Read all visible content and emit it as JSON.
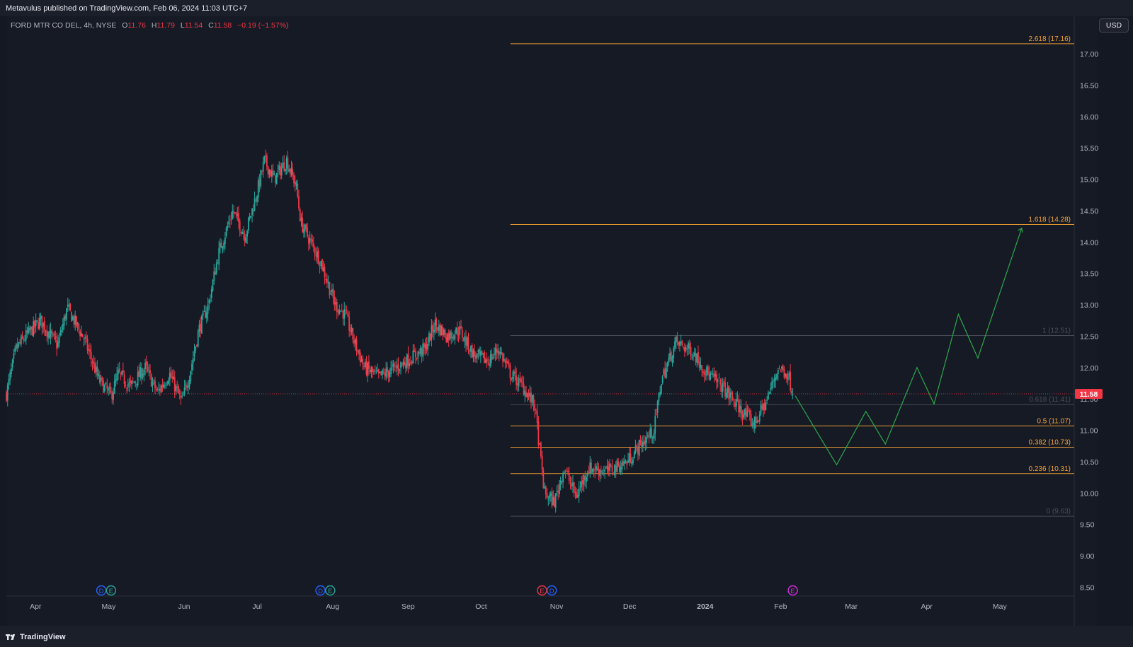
{
  "header": {
    "publisher_text": "Metavulus published on TradingView.com, Feb 06, 2024 11:03 UTC+7"
  },
  "legend": {
    "symbol_text": "FORD MTR CO DEL, 4h, NYSE",
    "open_label": "O",
    "open_value": "11.76",
    "high_label": "H",
    "high_value": "11.79",
    "low_label": "L",
    "low_value": "11.54",
    "close_label": "C",
    "close_value": "11.58",
    "change_text": "−0.19 (−1.57%)"
  },
  "currency_button": "USD",
  "branding": "TradingView",
  "colors": {
    "up": "#26a69a",
    "down": "#f23645",
    "fib_orange": "#f7a233",
    "fib_gray": "#787b86",
    "projection": "#2ba84a",
    "background": "#161a25"
  },
  "chart_data": {
    "type": "candlestick",
    "title": "FORD MTR CO DEL, 4h, NYSE",
    "ylim": [
      8.2,
      17.35
    ],
    "price_axis_labels": [
      "17.00",
      "16.50",
      "16.00",
      "15.50",
      "15.00",
      "14.50",
      "14.00",
      "13.50",
      "13.00",
      "12.50",
      "12.00",
      "11.50",
      "11.00",
      "10.50",
      "10.00",
      "9.50",
      "9.00",
      "8.50"
    ],
    "price_axis_values": [
      17.0,
      16.5,
      16.0,
      15.5,
      15.0,
      14.5,
      14.0,
      13.5,
      13.0,
      12.5,
      12.0,
      11.5,
      11.0,
      10.5,
      10.0,
      9.5,
      9.0,
      8.5
    ],
    "time_axis_labels": [
      "Apr",
      "May",
      "Jun",
      "Jul",
      "Aug",
      "Sep",
      "Oct",
      "Nov",
      "Dec",
      "2024",
      "Feb",
      "Mar",
      "Apr",
      "May"
    ],
    "time_axis_dates": [
      "2023-04-01",
      "2023-05-01",
      "2023-06-01",
      "2023-07-01",
      "2023-08-01",
      "2023-09-01",
      "2023-10-01",
      "2023-11-01",
      "2023-12-01",
      "2024-01-01",
      "2024-02-01",
      "2024-03-01",
      "2024-04-01",
      "2024-05-01"
    ],
    "last_price": 11.58,
    "last_price_label": "11.58",
    "price_path": [
      [
        "2023-03-20",
        11.58
      ],
      [
        "2023-03-24",
        12.3
      ],
      [
        "2023-03-28",
        12.5
      ],
      [
        "2023-04-03",
        12.75
      ],
      [
        "2023-04-10",
        12.35
      ],
      [
        "2023-04-14",
        12.95
      ],
      [
        "2023-04-21",
        12.45
      ],
      [
        "2023-04-27",
        11.8
      ],
      [
        "2023-05-02",
        11.55
      ],
      [
        "2023-05-05",
        11.9
      ],
      [
        "2023-05-10",
        11.7
      ],
      [
        "2023-05-16",
        12.0
      ],
      [
        "2023-05-21",
        11.6
      ],
      [
        "2023-05-26",
        11.9
      ],
      [
        "2023-05-31",
        11.45
      ],
      [
        "2023-06-03",
        11.85
      ],
      [
        "2023-06-07",
        12.6
      ],
      [
        "2023-06-11",
        13.0
      ],
      [
        "2023-06-15",
        13.8
      ],
      [
        "2023-06-21",
        14.5
      ],
      [
        "2023-06-26",
        14.1
      ],
      [
        "2023-07-01",
        14.8
      ],
      [
        "2023-07-04",
        15.3
      ],
      [
        "2023-07-08",
        15.0
      ],
      [
        "2023-07-13",
        15.3
      ],
      [
        "2023-07-17",
        14.9
      ],
      [
        "2023-07-19",
        14.3
      ],
      [
        "2023-07-23",
        14.0
      ],
      [
        "2023-07-27",
        13.7
      ],
      [
        "2023-08-02",
        13.0
      ],
      [
        "2023-08-06",
        12.85
      ],
      [
        "2023-08-10",
        12.4
      ],
      [
        "2023-08-14",
        12.0
      ],
      [
        "2023-08-20",
        11.85
      ],
      [
        "2023-08-27",
        12.0
      ],
      [
        "2023-09-02",
        12.15
      ],
      [
        "2023-09-08",
        12.3
      ],
      [
        "2023-09-12",
        12.7
      ],
      [
        "2023-09-17",
        12.5
      ],
      [
        "2023-09-22",
        12.6
      ],
      [
        "2023-09-28",
        12.2
      ],
      [
        "2023-10-04",
        12.1
      ],
      [
        "2023-10-08",
        12.3
      ],
      [
        "2023-10-13",
        11.9
      ],
      [
        "2023-10-18",
        11.7
      ],
      [
        "2023-10-23",
        11.4
      ],
      [
        "2023-10-27",
        10.0
      ],
      [
        "2023-10-31",
        9.85
      ],
      [
        "2023-11-04",
        10.4
      ],
      [
        "2023-11-09",
        9.95
      ],
      [
        "2023-11-14",
        10.4
      ],
      [
        "2023-11-22",
        10.35
      ],
      [
        "2023-11-30",
        10.5
      ],
      [
        "2023-12-05",
        10.75
      ],
      [
        "2023-12-11",
        11.0
      ],
      [
        "2023-12-14",
        11.8
      ],
      [
        "2023-12-20",
        12.4
      ],
      [
        "2023-12-27",
        12.25
      ],
      [
        "2024-01-02",
        11.9
      ],
      [
        "2024-01-08",
        11.7
      ],
      [
        "2024-01-15",
        11.35
      ],
      [
        "2024-01-21",
        11.1
      ],
      [
        "2024-01-26",
        11.45
      ],
      [
        "2024-01-31",
        12.0
      ],
      [
        "2024-02-04",
        11.9
      ],
      [
        "2024-02-06",
        11.58
      ]
    ],
    "fibonacci": [
      {
        "label": "2.618 (17.16)",
        "price": 17.16,
        "color": "#f7a233"
      },
      {
        "label": "1.618 (14.28)",
        "price": 14.28,
        "color": "#f7a233"
      },
      {
        "label": "1 (12.51)",
        "price": 12.51,
        "color": "#5d606b"
      },
      {
        "label": "0.618 (11.41)",
        "price": 11.41,
        "color": "#5d606b"
      },
      {
        "label": "0.5 (11.07)",
        "price": 11.07,
        "color": "#f7a233"
      },
      {
        "label": "0.382 (10.73)",
        "price": 10.73,
        "color": "#f7a233"
      },
      {
        "label": "0.236 (10.31)",
        "price": 10.31,
        "color": "#f7a233"
      },
      {
        "label": "0 (9.63)",
        "price": 9.63,
        "color": "#5d606b"
      }
    ],
    "fibonacci_start_date": "2023-10-13",
    "projection_path": [
      [
        "2024-02-07",
        11.55
      ],
      [
        "2024-02-24",
        10.45
      ],
      [
        "2024-03-07",
        11.3
      ],
      [
        "2024-03-15",
        10.78
      ],
      [
        "2024-03-28",
        12.0
      ],
      [
        "2024-04-04",
        11.42
      ],
      [
        "2024-04-14",
        12.85
      ],
      [
        "2024-04-22",
        12.15
      ],
      [
        "2024-05-10",
        14.22
      ]
    ],
    "event_markers": [
      {
        "date": "2023-04-28",
        "letter": "D",
        "color": "#2962ff"
      },
      {
        "date": "2023-05-02",
        "letter": "E",
        "color": "#26a69a"
      },
      {
        "date": "2023-07-27",
        "letter": "D",
        "color": "#2962ff"
      },
      {
        "date": "2023-07-31",
        "letter": "E",
        "color": "#26a69a"
      },
      {
        "date": "2023-10-26",
        "letter": "E",
        "color": "#f23645"
      },
      {
        "date": "2023-10-30",
        "letter": "D",
        "color": "#2962ff"
      },
      {
        "date": "2024-02-06",
        "letter": "E",
        "color": "#d52ee0"
      }
    ]
  }
}
